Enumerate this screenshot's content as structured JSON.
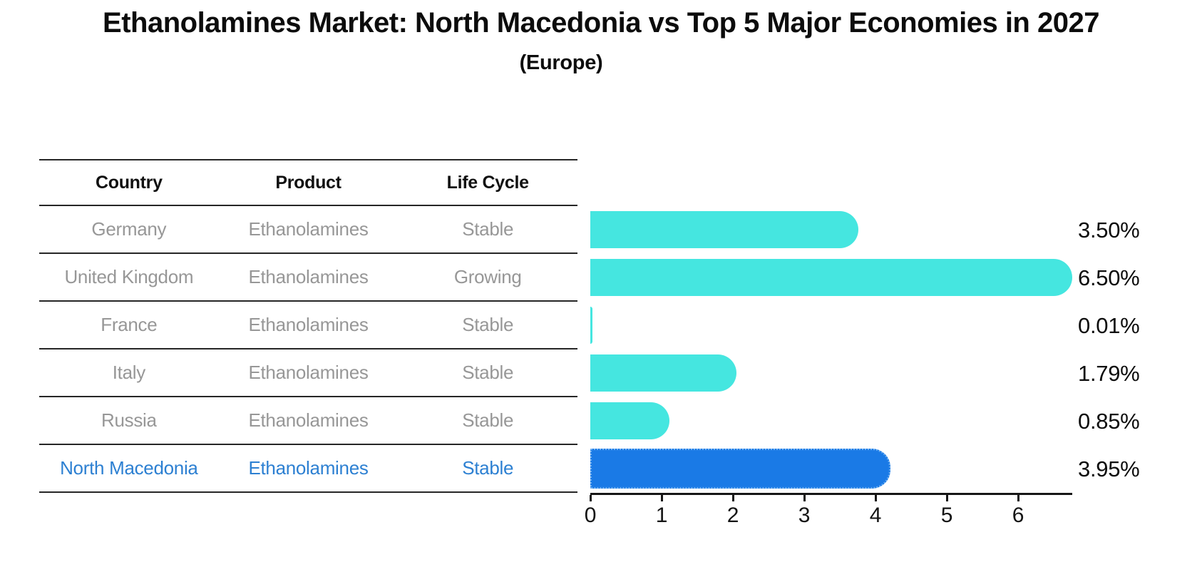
{
  "title": "Ethanolamines Market: North Macedonia vs Top 5 Major Economies in 2027",
  "subtitle": "(Europe)",
  "table": {
    "headers": [
      "Country",
      "Product",
      "Life Cycle"
    ],
    "rows": [
      {
        "country": "Germany",
        "product": "Ethanolamines",
        "life_cycle": "Stable",
        "highlight": false
      },
      {
        "country": "United Kingdom",
        "product": "Ethanolamines",
        "life_cycle": "Growing",
        "highlight": false
      },
      {
        "country": "France",
        "product": "Ethanolamines",
        "life_cycle": "Stable",
        "highlight": false
      },
      {
        "country": "Italy",
        "product": "Ethanolamines",
        "life_cycle": "Stable",
        "highlight": false
      },
      {
        "country": "Russia",
        "product": "Ethanolamines",
        "life_cycle": "Stable",
        "highlight": false
      },
      {
        "country": "North Macedonia",
        "product": "Ethanolamines",
        "life_cycle": "Stable",
        "highlight": true
      }
    ]
  },
  "chart_data": {
    "type": "bar",
    "orientation": "horizontal",
    "title": "Ethanolamines Market: North Macedonia vs Top 5 Major Economies in 2027 (Europe)",
    "categories": [
      "Germany",
      "United Kingdom",
      "France",
      "Italy",
      "Russia",
      "North Macedonia"
    ],
    "values": [
      3.5,
      6.5,
      0.01,
      1.79,
      0.85,
      3.95
    ],
    "labels": [
      "3.50%",
      "6.50%",
      "0.01%",
      "1.79%",
      "0.85%",
      "3.95%"
    ],
    "xlabel": "",
    "ylabel": "",
    "xlim": [
      0,
      6.76
    ],
    "xticks": [
      0,
      1,
      2,
      3,
      4,
      5,
      6
    ],
    "grid": false,
    "legend": "none",
    "bar_color": "#45e6e0",
    "highlight_color": "#1a7ae6",
    "highlight_border_color": "#6fb0f2",
    "highlight_text_color": "#2d80d2",
    "highlight_index": 5
  }
}
